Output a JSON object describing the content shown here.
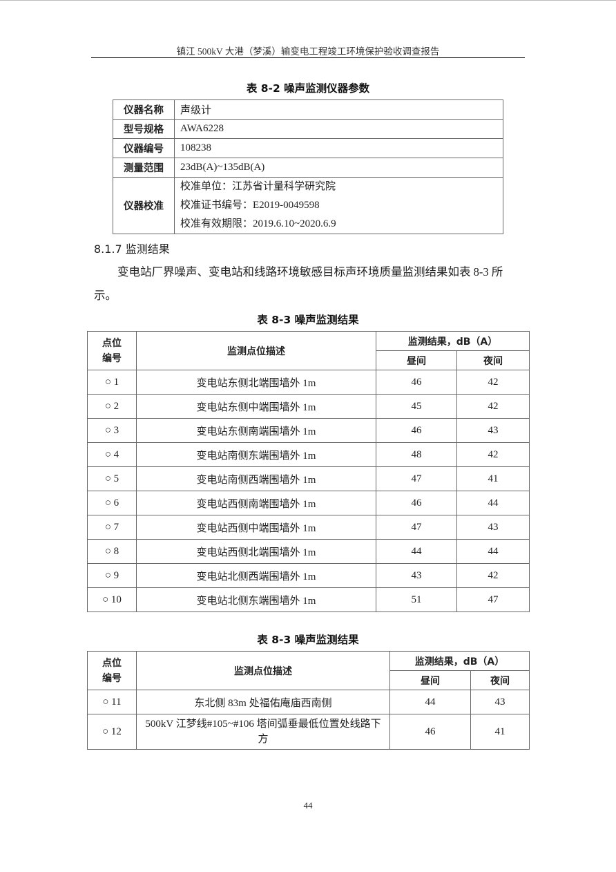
{
  "header": {
    "title": "镇江 500kV 大港（梦溪）输变电工程竣工环境保护验收调查报告"
  },
  "table_8_2": {
    "caption": "表 8-2  噪声监测仪器参数",
    "rows": [
      {
        "key": "仪器名称",
        "value": "声级计"
      },
      {
        "key": "型号规格",
        "value": "AWA6228"
      },
      {
        "key": "仪器编号",
        "value": "108238"
      },
      {
        "key": "测量范围",
        "value": "23dB(A)~135dB(A)"
      }
    ],
    "calibration": {
      "key": "仪器校准",
      "lines": [
        "校准单位：江苏省计量科学研究院",
        "校准证书编号：E2019-0049598",
        "校准有效期限：2019.6.10~2020.6.9"
      ]
    }
  },
  "section": {
    "heading": "8.1.7 监测结果",
    "paragraph": "变电站厂界噪声、变电站和线路环境敏感目标声环境质量监测结果如表 8-3 所示。"
  },
  "results_header": {
    "point_id": "点位\n编号",
    "description": "监测点位描述",
    "result": "监测结果，dB（A）",
    "day": "昼间",
    "night": "夜间"
  },
  "table_8_3a": {
    "caption": "表 8-3 噪声监测结果",
    "rows": [
      {
        "id": "○ 1",
        "desc": "变电站东侧北端围墙外 1m",
        "day": "46",
        "night": "42"
      },
      {
        "id": "○ 2",
        "desc": "变电站东侧中端围墙外 1m",
        "day": "45",
        "night": "42"
      },
      {
        "id": "○ 3",
        "desc": "变电站东侧南端围墙外 1m",
        "day": "46",
        "night": "43"
      },
      {
        "id": "○ 4",
        "desc": "变电站南侧东端围墙外 1m",
        "day": "48",
        "night": "42"
      },
      {
        "id": "○ 5",
        "desc": "变电站南侧西端围墙外 1m",
        "day": "47",
        "night": "41"
      },
      {
        "id": "○ 6",
        "desc": "变电站西侧南端围墙外 1m",
        "day": "46",
        "night": "44"
      },
      {
        "id": "○ 7",
        "desc": "变电站西侧中端围墙外 1m",
        "day": "47",
        "night": "43"
      },
      {
        "id": "○ 8",
        "desc": "变电站西侧北端围墙外 1m",
        "day": "44",
        "night": "44"
      },
      {
        "id": "○ 9",
        "desc": "变电站北侧西端围墙外 1m",
        "day": "43",
        "night": "42"
      },
      {
        "id": "○ 10",
        "desc": "变电站北侧东端围墙外 1m",
        "day": "51",
        "night": "47"
      }
    ]
  },
  "table_8_3b": {
    "caption": "表 8-3 噪声监测结果",
    "rows": [
      {
        "id": "○ 11",
        "desc": "东北侧 83m 处福佑庵庙西南侧",
        "day": "44",
        "night": "43"
      },
      {
        "id": "○ 12",
        "desc": "500kV 江梦线#105~#106 塔间弧垂最低位置处线路下方",
        "day": "46",
        "night": "41"
      }
    ]
  },
  "footer": {
    "page_number": "44"
  }
}
